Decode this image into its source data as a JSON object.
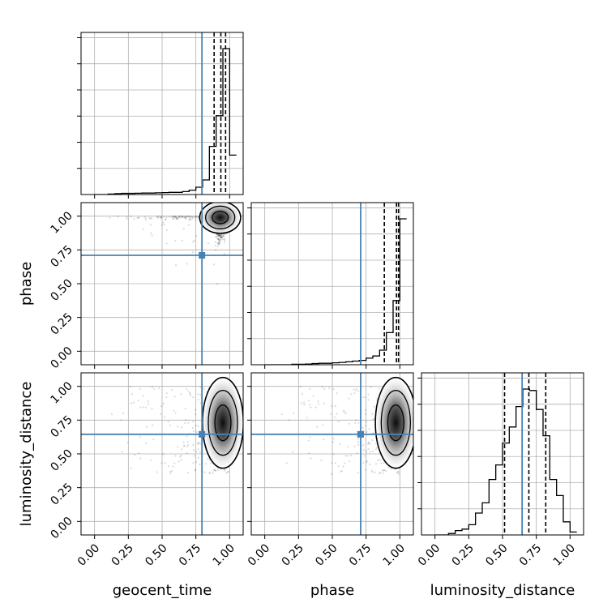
{
  "chart_data": {
    "type": "corner",
    "parameters": [
      "geocent_time",
      "phase",
      "luminosity_distance"
    ],
    "range": [
      0,
      1
    ],
    "ticks": [
      "0.00",
      "0.25",
      "0.50",
      "0.75",
      "1.00"
    ],
    "truths": [
      0.795,
      0.71,
      0.645
    ],
    "truth_color": "#4682b4",
    "quantiles": [
      [
        0.885,
        0.935,
        0.97
      ],
      [
        0.885,
        0.975,
        0.99
      ],
      [
        0.515,
        0.695,
        0.82
      ]
    ],
    "histograms": [
      {
        "bins": [
          0.0,
          0.05,
          0.1,
          0.15,
          0.2,
          0.25,
          0.3,
          0.35,
          0.4,
          0.45,
          0.5,
          0.55,
          0.6,
          0.65,
          0.7,
          0.75,
          0.8,
          0.85,
          0.9,
          0.95,
          1.0
        ],
        "counts": [
          0,
          0,
          0.3,
          0.6,
          0.8,
          0.8,
          0.9,
          1.0,
          1.0,
          1.2,
          1.3,
          1.5,
          1.5,
          2,
          3,
          5,
          10,
          33,
          54,
          100,
          27
        ]
      },
      {
        "bins": [
          0.0,
          0.05,
          0.1,
          0.15,
          0.2,
          0.25,
          0.3,
          0.35,
          0.4,
          0.45,
          0.5,
          0.55,
          0.6,
          0.65,
          0.7,
          0.75,
          0.8,
          0.85,
          0.9,
          0.95,
          1.0
        ],
        "counts": [
          0,
          0,
          0,
          0,
          0.3,
          0.3,
          0.5,
          0.8,
          1,
          1,
          1.3,
          1.6,
          2,
          2.5,
          3,
          4.5,
          6,
          10,
          22,
          44,
          100
        ]
      },
      {
        "bins": [
          0.0,
          0.05,
          0.1,
          0.15,
          0.2,
          0.25,
          0.3,
          0.35,
          0.4,
          0.45,
          0.5,
          0.55,
          0.6,
          0.65,
          0.7,
          0.75,
          0.8,
          0.85,
          0.9,
          0.95,
          1.0
        ],
        "counts": [
          0,
          0,
          1,
          3,
          4,
          7,
          15,
          22,
          38,
          48,
          63,
          74,
          88,
          100,
          99,
          86,
          68,
          38,
          27,
          9,
          2
        ]
      }
    ],
    "density_2d": [
      {
        "x": "geocent_time",
        "y": "phase",
        "peak": [
          0.93,
          0.99
        ]
      },
      {
        "x": "geocent_time",
        "y": "luminosity_distance",
        "peak": [
          0.95,
          0.73
        ]
      },
      {
        "x": "phase",
        "y": "luminosity_distance",
        "peak": [
          0.97,
          0.73
        ]
      }
    ],
    "grid": true
  }
}
